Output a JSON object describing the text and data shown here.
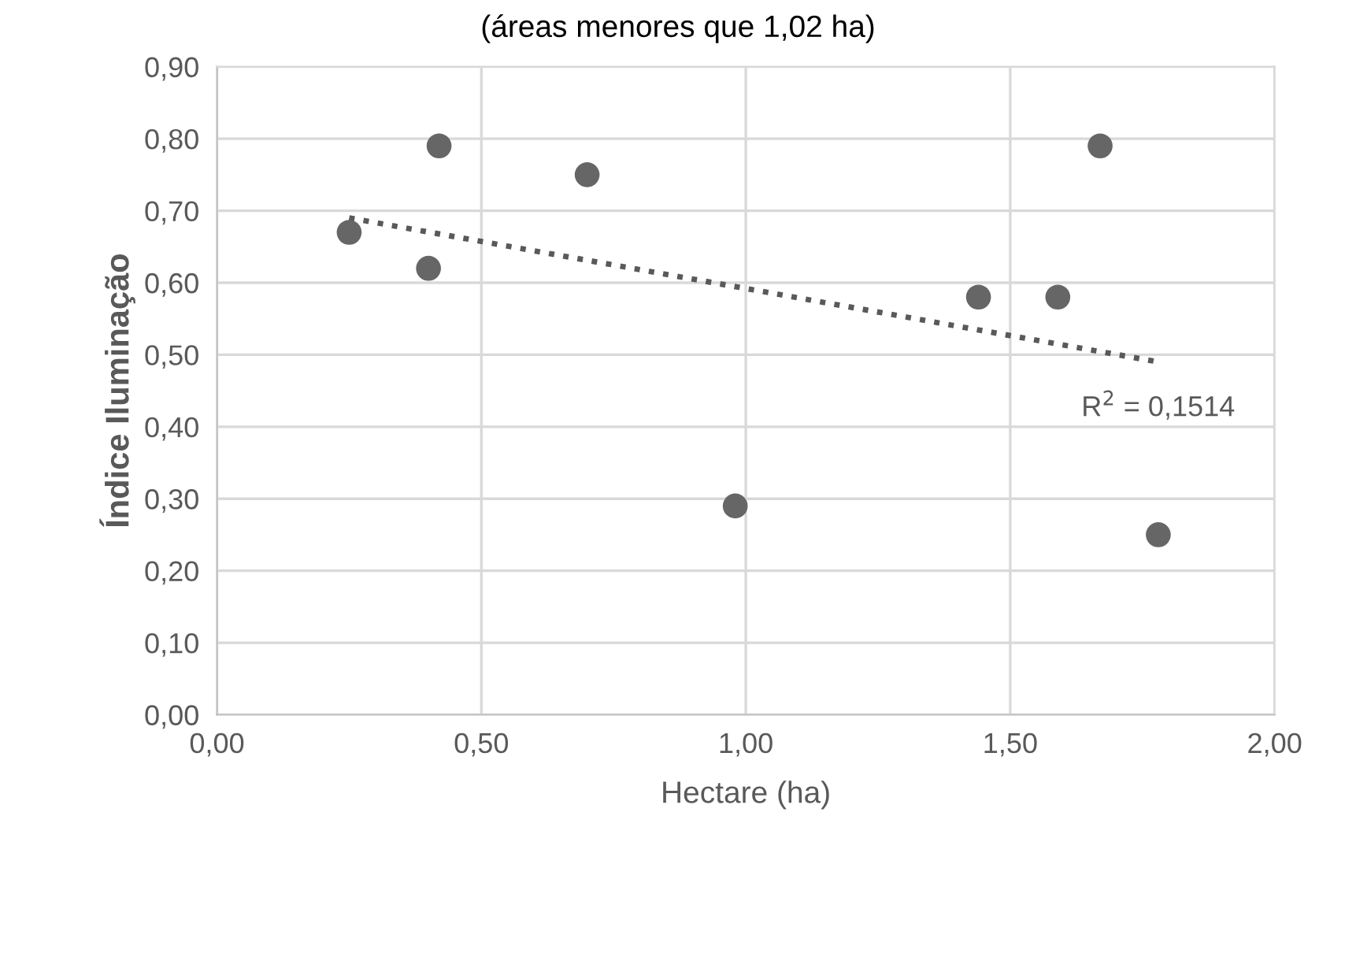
{
  "chart_data": {
    "type": "scatter",
    "title": "(áreas menores que 1,02 ha)",
    "xlabel": "Hectare (ha)",
    "ylabel": "Índice Iluminação",
    "series": [
      {
        "color": "#666666",
        "x": [
          0.25,
          0.4,
          0.42,
          0.7,
          0.98,
          1.44,
          1.59,
          1.67,
          1.78
        ],
        "values": [
          0.67,
          0.62,
          0.79,
          0.75,
          0.29,
          0.58,
          0.58,
          0.79,
          0.25
        ]
      },
      {
        "type": "line",
        "color": "#595959",
        "line_style": "dotted",
        "marker": "none",
        "x": [
          0.25,
          1.78
        ],
        "values": [
          0.69,
          0.49
        ]
      }
    ],
    "annotations": [
      "R$^{2}$ = 0,1514"
    ],
    "marker": "circle",
    "grid": true,
    "legend": false,
    "xlim": [
      0,
      2
    ],
    "xticks": [
      {
        "value": 0,
        "label": "0,00"
      },
      {
        "value": 0.5,
        "label": "0,50"
      },
      {
        "value": 1,
        "label": "1,00"
      },
      {
        "value": 1.5,
        "label": "1,50"
      },
      {
        "value": 2,
        "label": "2,00"
      }
    ],
    "ylim": [
      0,
      0.9
    ],
    "yticks": [
      {
        "value": 0,
        "label": "0,00"
      },
      {
        "value": 0.1,
        "label": "0,10"
      },
      {
        "value": 0.2,
        "label": "0,20"
      },
      {
        "value": 0.3,
        "label": "0,30"
      },
      {
        "value": 0.4,
        "label": "0,40"
      },
      {
        "value": 0.5,
        "label": "0,50"
      },
      {
        "value": 0.6,
        "label": "0,60"
      },
      {
        "value": 0.7,
        "label": "0,70"
      },
      {
        "value": 0.8,
        "label": "0,80"
      },
      {
        "value": 0.9,
        "label": "0,90"
      }
    ]
  }
}
